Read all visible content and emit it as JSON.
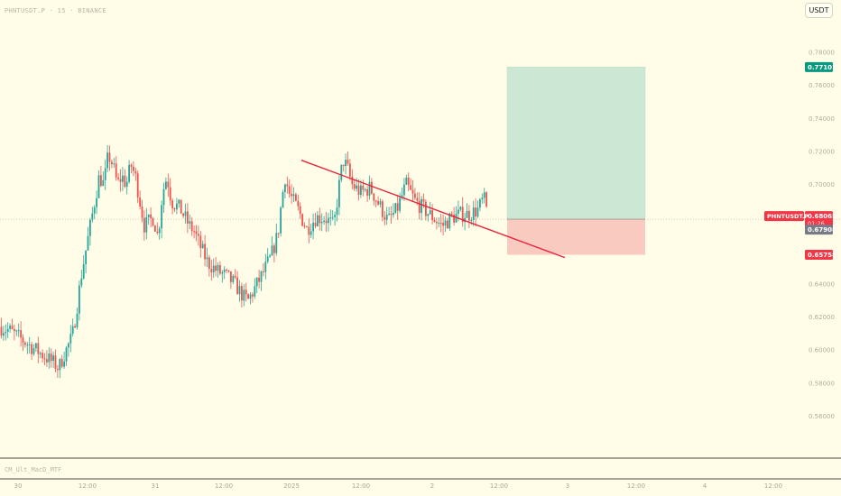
{
  "symbol_title": "PHNTUSDT.P · 15 · BINANCE",
  "indicator_title": "CM_Ult_MacD_MTF",
  "currency_button": "USDT",
  "colors": {
    "background": "#fffde7",
    "up_candle": "#26a69a",
    "down_candle": "#ef5350",
    "trendline": "#e8213a",
    "target_zone": "#cce7d4",
    "stop_zone": "#f8cac0",
    "target_badge": "#089981",
    "stop_badge": "#f23645",
    "current_badge": "#f23645",
    "marker_badge": "#787b86"
  },
  "chart_data": {
    "type": "candlestick",
    "y_axis": {
      "range": [
        0.549,
        0.793
      ],
      "ticks": [
        "0.78000",
        "0.76000",
        "0.74000",
        "0.72000",
        "0.70000",
        "0.64000",
        "0.62000",
        "0.60000",
        "0.58000",
        "0.56000"
      ]
    },
    "x_axis": {
      "ticks": [
        "30",
        "12:00",
        "31",
        "12:00",
        "2025",
        "12:00",
        "2",
        "12:00",
        "3",
        "12:00",
        "4",
        "12:00"
      ]
    },
    "price_path": [
      [
        0,
        0.614
      ],
      [
        10,
        0.612
      ],
      [
        20,
        0.608
      ],
      [
        30,
        0.604
      ],
      [
        40,
        0.6
      ],
      [
        50,
        0.596
      ],
      [
        60,
        0.592
      ],
      [
        65,
        0.589
      ],
      [
        70,
        0.596
      ],
      [
        80,
        0.608
      ],
      [
        85,
        0.625
      ],
      [
        90,
        0.645
      ],
      [
        95,
        0.66
      ],
      [
        100,
        0.675
      ],
      [
        105,
        0.69
      ],
      [
        110,
        0.705
      ],
      [
        115,
        0.7
      ],
      [
        120,
        0.718
      ],
      [
        125,
        0.712
      ],
      [
        130,
        0.7
      ],
      [
        135,
        0.705
      ],
      [
        140,
        0.7
      ],
      [
        145,
        0.712
      ],
      [
        150,
        0.705
      ],
      [
        155,
        0.69
      ],
      [
        160,
        0.675
      ],
      [
        170,
        0.68
      ],
      [
        175,
        0.668
      ],
      [
        180,
        0.695
      ],
      [
        185,
        0.705
      ],
      [
        190,
        0.69
      ],
      [
        200,
        0.685
      ],
      [
        210,
        0.675
      ],
      [
        215,
        0.672
      ],
      [
        220,
        0.665
      ],
      [
        230,
        0.653
      ],
      [
        240,
        0.648
      ],
      [
        250,
        0.645
      ],
      [
        260,
        0.64
      ],
      [
        270,
        0.632
      ],
      [
        275,
        0.63
      ],
      [
        280,
        0.635
      ],
      [
        290,
        0.645
      ],
      [
        300,
        0.656
      ],
      [
        308,
        0.67
      ],
      [
        312,
        0.69
      ],
      [
        316,
        0.705
      ],
      [
        320,
        0.695
      ],
      [
        330,
        0.685
      ],
      [
        340,
        0.673
      ],
      [
        350,
        0.68
      ],
      [
        360,
        0.68
      ],
      [
        370,
        0.675
      ],
      [
        376,
        0.7
      ],
      [
        380,
        0.715
      ],
      [
        385,
        0.71
      ],
      [
        390,
        0.7
      ],
      [
        400,
        0.695
      ],
      [
        410,
        0.698
      ],
      [
        420,
        0.688
      ],
      [
        430,
        0.678
      ],
      [
        440,
        0.685
      ],
      [
        450,
        0.7
      ],
      [
        460,
        0.69
      ],
      [
        470,
        0.685
      ],
      [
        480,
        0.68
      ],
      [
        490,
        0.675
      ],
      [
        500,
        0.68
      ],
      [
        510,
        0.682
      ],
      [
        520,
        0.682
      ],
      [
        530,
        0.685
      ],
      [
        536,
        0.692
      ],
      [
        541,
        0.681
      ]
    ],
    "trendline": {
      "start": [
        334,
        0.71469
      ],
      "end": [
        626,
        0.65589
      ]
    },
    "position": {
      "entry": 0.67908,
      "target": 0.77101,
      "stop": 0.65758,
      "x_start": 562,
      "x_end": 715
    },
    "price_labels": {
      "target": "0.77101",
      "stop": "0.65758",
      "symbol": "PHNTUSDT.P",
      "current_price": "0.68065",
      "countdown": "01:26",
      "marker_price": "0.67908"
    }
  }
}
